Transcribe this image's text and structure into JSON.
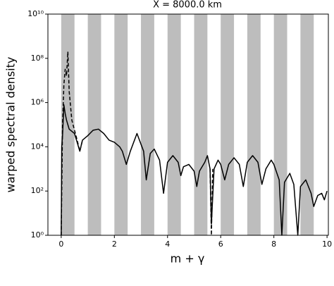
{
  "chart_data": {
    "type": "line",
    "title": "X = 8000.0 km",
    "xlabel": "m + γ",
    "ylabel": "warped spectral density",
    "xlim": [
      -0.5,
      10.05
    ],
    "xticks": [
      0,
      2,
      4,
      6,
      8,
      10
    ],
    "ylim": [
      1,
      10000000000
    ],
    "log_y": true,
    "yticks": [
      {
        "value": 1,
        "label": "10⁰"
      },
      {
        "value": 100,
        "label": "10²"
      },
      {
        "value": 10000,
        "label": "10⁴"
      },
      {
        "value": 1000000,
        "label": "10⁶"
      },
      {
        "value": 100000000,
        "label": "10⁸"
      },
      {
        "value": 10000000000,
        "label": "10¹⁰"
      }
    ],
    "shaded_bands": [
      [
        0,
        0.5
      ],
      [
        1,
        1.5
      ],
      [
        2,
        2.5
      ],
      [
        3,
        3.5
      ],
      [
        4,
        4.5
      ],
      [
        5,
        5.5
      ],
      [
        6,
        6.5
      ],
      [
        7,
        7.5
      ],
      [
        8,
        8.5
      ],
      [
        9,
        9.5
      ]
    ],
    "band_color": "#bdbdbd",
    "series": [
      {
        "color": "#000000",
        "dash": "solid",
        "x": [
          0.0,
          0.02,
          0.05,
          0.1,
          0.15,
          0.2,
          0.3,
          0.5,
          0.65,
          0.7,
          0.8,
          1.0,
          1.2,
          1.4,
          1.6,
          1.8,
          2.0,
          2.2,
          2.3,
          2.45,
          2.6,
          2.85,
          3.1,
          3.2,
          3.35,
          3.5,
          3.7,
          3.85,
          4.0,
          4.2,
          4.4,
          4.5,
          4.6,
          4.8,
          5.0,
          5.1,
          5.2,
          5.4,
          5.5,
          5.6,
          5.65,
          5.75,
          5.9,
          6.0,
          6.15,
          6.3,
          6.5,
          6.7,
          6.85,
          7.0,
          7.2,
          7.4,
          7.55,
          7.7,
          7.9,
          8.0,
          8.2,
          8.3,
          8.4,
          8.6,
          8.75,
          8.9,
          9.0,
          9.2,
          9.4,
          9.5,
          9.65,
          9.8,
          9.9,
          10.0
        ],
        "values": [
          1,
          10000,
          32000,
          790000,
          320000,
          160000,
          63000,
          40000,
          10000,
          6300,
          20000,
          32000,
          56000,
          63000,
          40000,
          20000,
          16000,
          10000,
          6300,
          1600,
          6300,
          40000,
          6300,
          320,
          5000,
          7900,
          2500,
          79,
          2000,
          4000,
          2000,
          500,
          1260,
          1600,
          790,
          160,
          790,
          2000,
          4000,
          1000,
          3.2,
          1000,
          2500,
          1600,
          320,
          1600,
          3200,
          1600,
          160,
          2000,
          4000,
          2000,
          200,
          1000,
          2500,
          1600,
          320,
          1,
          250,
          630,
          200,
          1,
          160,
          320,
          79,
          20,
          63,
          79,
          40,
          100
        ]
      },
      {
        "color": "#000000",
        "dash": "dashed",
        "x": [
          0.0,
          0.05,
          0.1,
          0.15,
          0.2,
          0.25,
          0.3,
          0.4,
          0.6,
          0.7,
          0.8,
          5.55,
          5.6,
          5.65,
          5.7
        ],
        "values": [
          1,
          100000,
          6300000,
          32000000,
          16000000,
          200000000,
          3200000,
          160000,
          20000,
          6300,
          20000,
          null,
          1000,
          1,
          1000
        ]
      }
    ]
  }
}
